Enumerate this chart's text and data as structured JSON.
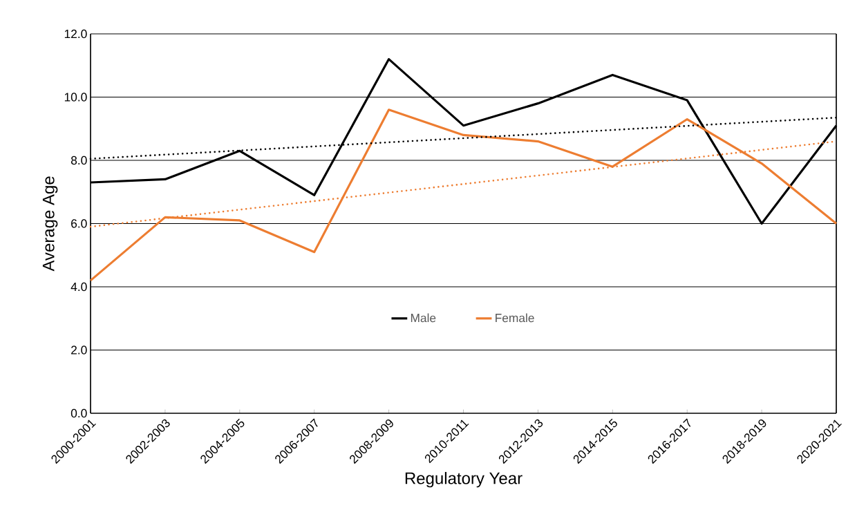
{
  "chart_data": {
    "type": "line",
    "xlabel": "Regulatory Year",
    "ylabel": "Average Age",
    "categories": [
      "2000-2001",
      "2002-2003",
      "2004-2005",
      "2006-2007",
      "2008-2009",
      "2010-2011",
      "2012-2013",
      "2014-2015",
      "2016-2017",
      "2018-2019",
      "2020-2021"
    ],
    "series": [
      {
        "name": "Male",
        "color": "#000000",
        "values": [
          7.3,
          7.4,
          8.3,
          6.9,
          11.2,
          9.1,
          9.8,
          10.7,
          9.9,
          6.0,
          9.1
        ]
      },
      {
        "name": "Female",
        "color": "#ed7d31",
        "values": [
          4.2,
          6.2,
          6.1,
          5.1,
          9.6,
          8.8,
          8.6,
          7.8,
          9.3,
          7.9,
          6.0
        ]
      },
      {
        "color": "#000000",
        "line_style": "dotted",
        "x": [
          "2000-2001",
          "2020-2021"
        ],
        "values": [
          8.05,
          9.35
        ]
      },
      {
        "color": "#ed7d31",
        "line_style": "dotted",
        "x": [
          "2000-2001",
          "2020-2021"
        ],
        "values": [
          5.9,
          8.6
        ]
      }
    ],
    "ylim": [
      0,
      12
    ],
    "yticks": [
      {
        "value": 0,
        "label": "0.0"
      },
      {
        "value": 2,
        "label": "2.0"
      },
      {
        "value": 4,
        "label": "4.0"
      },
      {
        "value": 6,
        "label": "6.0"
      },
      {
        "value": 8,
        "label": "8.0"
      },
      {
        "value": 10,
        "label": "10.0"
      },
      {
        "value": 12,
        "label": "12.0"
      }
    ],
    "grid": "y",
    "legend": "bottom",
    "line_style": "solid",
    "marker": "none"
  }
}
